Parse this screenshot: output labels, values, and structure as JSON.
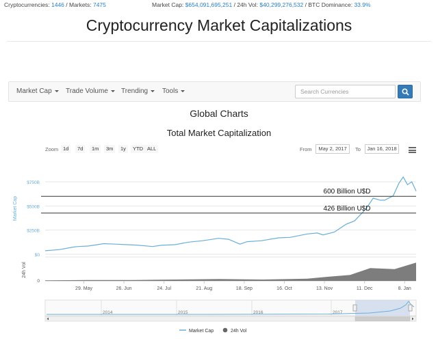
{
  "stats": {
    "cryptocurrencies_label": "Cryptocurrencies:",
    "cryptocurrencies_value": "1446",
    "markets_label": "/ Markets:",
    "markets_value": "7475",
    "market_cap_label": "Market Cap:",
    "market_cap_value": "$654,091,695,251",
    "vol_label": "/ 24h Vol:",
    "vol_value": "$40,299,276,532",
    "dominance_label": "/ BTC Dominance:",
    "dominance_value": "33.9%"
  },
  "page_title": "Cryptocurrency Market Capitalizations",
  "nav": {
    "items": [
      {
        "label": "Market Cap"
      },
      {
        "label": "Trade Volume"
      },
      {
        "label": "Trending"
      },
      {
        "label": "Tools"
      }
    ],
    "search_placeholder": "Search Currencies"
  },
  "section_title": "Global Charts",
  "range_selector": {
    "zoom_label": "Zoom",
    "buttons": [
      "1d",
      "7d",
      "1m",
      "3m",
      "1y",
      "YTD",
      "ALL"
    ],
    "from_label": "From",
    "from_value": "May 2, 2017",
    "to_label": "To",
    "to_value": "Jan 16, 2018"
  },
  "colors": {
    "market_cap_line": "#6aaed6",
    "volume_bars": "#666666",
    "accent": "#337ab7"
  },
  "chart_data": {
    "type": "line",
    "title": "Total Market Capitalization",
    "ylabel": "Market Cap",
    "ylabel_volume": "24h Vol",
    "yticks": [
      "$0",
      "$250B",
      "$500B",
      "$750B"
    ],
    "yticks_volume": [
      "0"
    ],
    "ylim": [
      0,
      850
    ],
    "xticks": [
      "29. May",
      "26. Jun",
      "24. Jul",
      "21. Aug",
      "18. Sep",
      "16. Oct",
      "13. Nov",
      "11. Dec",
      "8. Jan"
    ],
    "navigator_years": [
      "2014",
      "2015",
      "2016",
      "2017"
    ],
    "series": [
      {
        "name": "Market Cap",
        "x": [
          "2017-05-02",
          "2017-05-12",
          "2017-05-22",
          "2017-05-25",
          "2017-06-01",
          "2017-06-12",
          "2017-06-20",
          "2017-06-27",
          "2017-07-05",
          "2017-07-16",
          "2017-07-22",
          "2017-08-01",
          "2017-08-10",
          "2017-08-20",
          "2017-08-31",
          "2017-09-07",
          "2017-09-15",
          "2017-09-20",
          "2017-09-30",
          "2017-10-12",
          "2017-10-20",
          "2017-11-01",
          "2017-11-08",
          "2017-11-12",
          "2017-11-20",
          "2017-11-28",
          "2017-12-04",
          "2017-12-12",
          "2017-12-17",
          "2017-12-22",
          "2017-12-25",
          "2017-12-31",
          "2018-01-04",
          "2018-01-07",
          "2018-01-10",
          "2018-01-13",
          "2018-01-16"
        ],
        "values": [
          36,
          48,
          75,
          80,
          85,
          110,
          105,
          100,
          95,
          80,
          93,
          100,
          125,
          140,
          165,
          155,
          105,
          130,
          140,
          170,
          175,
          210,
          220,
          200,
          230,
          310,
          345,
          470,
          580,
          560,
          560,
          605,
          735,
          800,
          720,
          750,
          654
        ]
      },
      {
        "name": "24h Vol",
        "x": [
          "2017-05-02",
          "2017-06-01",
          "2017-07-01",
          "2017-08-01",
          "2017-09-01",
          "2017-10-01",
          "2017-11-01",
          "2017-11-15",
          "2017-12-01",
          "2017-12-15",
          "2018-01-01",
          "2018-01-16"
        ],
        "values": [
          1,
          2,
          2,
          3,
          4,
          3,
          5,
          9,
          13,
          28,
          26,
          40
        ]
      }
    ],
    "annotations": [
      {
        "text": "600 Billion U$D",
        "y": 600
      },
      {
        "text": "426 Billion U$D",
        "y": 426
      }
    ],
    "legend": "bottom"
  }
}
